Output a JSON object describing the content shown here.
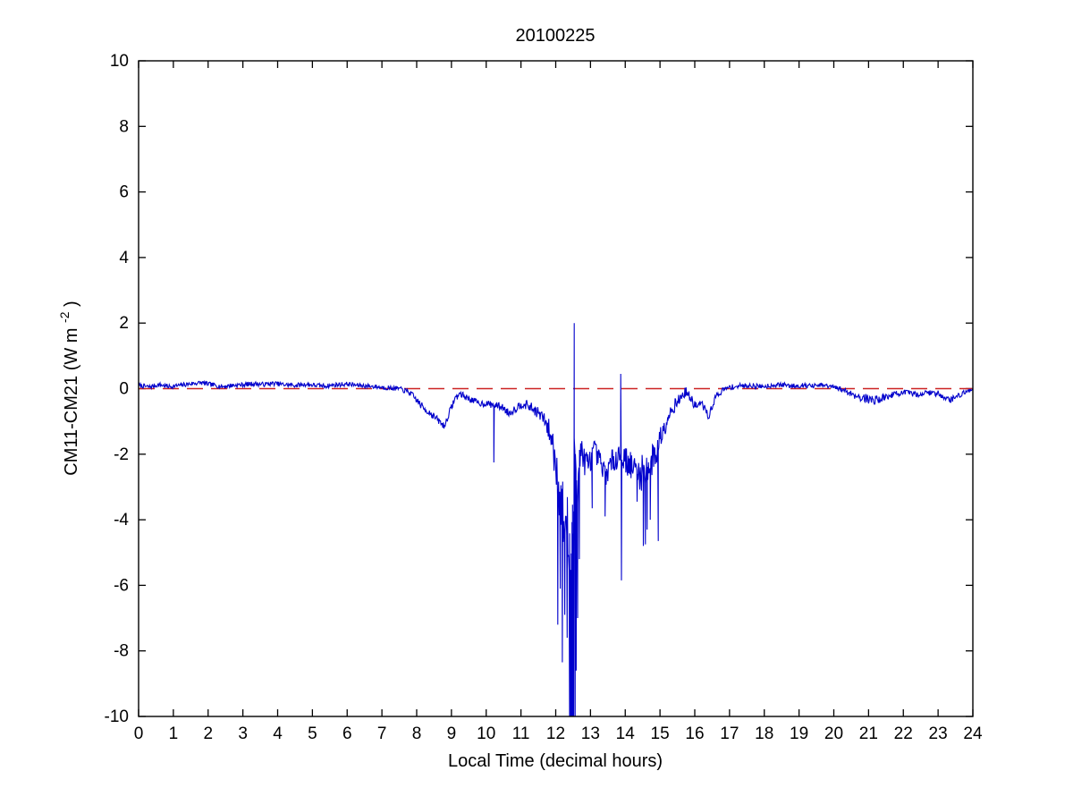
{
  "window": {
    "background": "#FFFFFF"
  },
  "chart_data": {
    "type": "line",
    "title": "20100225",
    "xlabel": "Local Time (decimal hours)",
    "ylabel": "CM11-CM21 (W m^-2)",
    "ylabel_parts": [
      "CM11-CM21 (W m",
      "-2",
      ")"
    ],
    "xlim": [
      0,
      24
    ],
    "ylim": [
      -10,
      10
    ],
    "xticks": [
      0,
      1,
      2,
      3,
      4,
      5,
      6,
      7,
      8,
      9,
      10,
      11,
      12,
      13,
      14,
      15,
      16,
      17,
      18,
      19,
      20,
      21,
      22,
      23,
      24
    ],
    "yticks": [
      -10,
      -8,
      -6,
      -4,
      -2,
      0,
      2,
      4,
      6,
      8,
      10
    ],
    "grid": false,
    "legend": null,
    "line_color": "#0000CC",
    "axis_color": "#000000",
    "zero_line": {
      "y": 0,
      "color": "#CC2222",
      "style": "dashed",
      "dash": [
        18,
        9
      ]
    },
    "sampling_hours": 0.016667,
    "noise_seed": 7,
    "series": [
      {
        "name": "CM11-CM21",
        "baseline_keypoints": [
          [
            0.0,
            0.1
          ],
          [
            0.3,
            0.05
          ],
          [
            0.6,
            0.12
          ],
          [
            0.9,
            0.06
          ],
          [
            1.2,
            0.1
          ],
          [
            1.5,
            0.15
          ],
          [
            1.8,
            0.18
          ],
          [
            2.1,
            0.12
          ],
          [
            2.4,
            0.06
          ],
          [
            2.7,
            0.1
          ],
          [
            3.0,
            0.12
          ],
          [
            3.3,
            0.15
          ],
          [
            3.6,
            0.13
          ],
          [
            3.9,
            0.16
          ],
          [
            4.2,
            0.12
          ],
          [
            4.5,
            0.1
          ],
          [
            4.8,
            0.13
          ],
          [
            5.1,
            0.1
          ],
          [
            5.4,
            0.08
          ],
          [
            5.7,
            0.12
          ],
          [
            6.0,
            0.14
          ],
          [
            6.3,
            0.1
          ],
          [
            6.6,
            0.08
          ],
          [
            6.9,
            0.05
          ],
          [
            7.2,
            0.02
          ],
          [
            7.5,
            0.0
          ],
          [
            7.8,
            -0.12
          ],
          [
            8.0,
            -0.35
          ],
          [
            8.2,
            -0.6
          ],
          [
            8.4,
            -0.75
          ],
          [
            8.6,
            -0.95
          ],
          [
            8.8,
            -1.15
          ],
          [
            8.95,
            -0.7
          ],
          [
            9.1,
            -0.3
          ],
          [
            9.25,
            -0.15
          ],
          [
            9.4,
            -0.25
          ],
          [
            9.6,
            -0.35
          ],
          [
            9.8,
            -0.45
          ],
          [
            10.0,
            -0.45
          ],
          [
            10.2,
            -0.5
          ],
          [
            10.45,
            -0.55
          ],
          [
            10.65,
            -0.75
          ],
          [
            10.85,
            -0.6
          ],
          [
            11.05,
            -0.45
          ],
          [
            11.25,
            -0.55
          ],
          [
            11.45,
            -0.7
          ],
          [
            11.65,
            -0.9
          ],
          [
            11.85,
            -1.4
          ],
          [
            12.0,
            -2.2
          ],
          [
            12.1,
            -3.2
          ],
          [
            12.2,
            -3.8
          ],
          [
            12.3,
            -4.2
          ],
          [
            12.4,
            -5.0
          ],
          [
            12.47,
            -5.4
          ],
          [
            12.55,
            -1.6
          ],
          [
            12.62,
            -2.8
          ],
          [
            12.72,
            -1.8
          ],
          [
            12.82,
            -2.2
          ],
          [
            12.95,
            -2.3
          ],
          [
            13.1,
            -1.9
          ],
          [
            13.25,
            -2.2
          ],
          [
            13.4,
            -2.6
          ],
          [
            13.55,
            -2.4
          ],
          [
            13.7,
            -2.1
          ],
          [
            13.85,
            -2.0
          ],
          [
            14.0,
            -2.15
          ],
          [
            14.15,
            -2.35
          ],
          [
            14.3,
            -2.5
          ],
          [
            14.45,
            -2.6
          ],
          [
            14.6,
            -2.45
          ],
          [
            14.75,
            -2.25
          ],
          [
            14.9,
            -1.9
          ],
          [
            15.05,
            -1.35
          ],
          [
            15.2,
            -0.9
          ],
          [
            15.35,
            -0.6
          ],
          [
            15.5,
            -0.4
          ],
          [
            15.75,
            -0.08
          ],
          [
            15.9,
            -0.35
          ],
          [
            16.05,
            -0.55
          ],
          [
            16.2,
            -0.45
          ],
          [
            16.4,
            -0.85
          ],
          [
            16.6,
            -0.25
          ],
          [
            16.8,
            -0.05
          ],
          [
            17.0,
            0.04
          ],
          [
            17.3,
            0.08
          ],
          [
            17.6,
            0.1
          ],
          [
            17.9,
            0.06
          ],
          [
            18.2,
            0.1
          ],
          [
            18.5,
            0.12
          ],
          [
            18.8,
            0.08
          ],
          [
            19.1,
            0.1
          ],
          [
            19.4,
            0.08
          ],
          [
            19.7,
            0.1
          ],
          [
            20.0,
            0.04
          ],
          [
            20.3,
            -0.05
          ],
          [
            20.6,
            -0.2
          ],
          [
            20.9,
            -0.3
          ],
          [
            21.2,
            -0.35
          ],
          [
            21.5,
            -0.25
          ],
          [
            21.8,
            -0.15
          ],
          [
            22.1,
            -0.12
          ],
          [
            22.4,
            -0.18
          ],
          [
            22.7,
            -0.12
          ],
          [
            23.0,
            -0.15
          ],
          [
            23.35,
            -0.35
          ],
          [
            23.6,
            -0.2
          ],
          [
            23.85,
            -0.08
          ],
          [
            24.0,
            0.0
          ]
        ],
        "noise_amplitude_keypoints": [
          [
            0.0,
            0.07
          ],
          [
            7.5,
            0.07
          ],
          [
            8.2,
            0.12
          ],
          [
            9.0,
            0.1
          ],
          [
            10.0,
            0.1
          ],
          [
            11.0,
            0.13
          ],
          [
            11.7,
            0.2
          ],
          [
            12.0,
            0.7
          ],
          [
            12.2,
            1.1
          ],
          [
            12.45,
            1.6
          ],
          [
            12.6,
            1.1
          ],
          [
            12.75,
            0.5
          ],
          [
            13.0,
            0.35
          ],
          [
            13.5,
            0.4
          ],
          [
            14.0,
            0.4
          ],
          [
            14.5,
            0.55
          ],
          [
            14.9,
            0.5
          ],
          [
            15.2,
            0.3
          ],
          [
            15.6,
            0.15
          ],
          [
            16.0,
            0.15
          ],
          [
            16.6,
            0.1
          ],
          [
            17.0,
            0.08
          ],
          [
            20.0,
            0.07
          ],
          [
            21.0,
            0.15
          ],
          [
            22.0,
            0.08
          ],
          [
            23.4,
            0.1
          ],
          [
            24.0,
            0.06
          ]
        ],
        "spikes": [
          [
            10.22,
            -2.25
          ],
          [
            12.06,
            -7.2
          ],
          [
            12.13,
            -6.1
          ],
          [
            12.19,
            -8.35
          ],
          [
            12.26,
            -6.9
          ],
          [
            12.33,
            -7.6
          ],
          [
            12.4,
            -10.6
          ],
          [
            12.413,
            -10.6
          ],
          [
            12.426,
            -10.6
          ],
          [
            12.439,
            -10.6
          ],
          [
            12.452,
            -10.6
          ],
          [
            12.465,
            -10.6
          ],
          [
            12.478,
            -10.6
          ],
          [
            12.491,
            -10.6
          ],
          [
            12.504,
            -10.6
          ],
          [
            12.517,
            -10.6
          ],
          [
            12.532,
            2.0
          ],
          [
            12.558,
            -10.6
          ],
          [
            12.59,
            -8.6
          ],
          [
            12.63,
            -7.0
          ],
          [
            12.68,
            -5.2
          ],
          [
            13.05,
            -3.65
          ],
          [
            13.42,
            -3.9
          ],
          [
            13.87,
            0.45
          ],
          [
            13.89,
            -5.85
          ],
          [
            14.34,
            -3.45
          ],
          [
            14.52,
            -4.8
          ],
          [
            14.58,
            -4.75
          ],
          [
            14.63,
            -4.3
          ],
          [
            14.72,
            -4.0
          ],
          [
            14.95,
            -4.65
          ]
        ]
      }
    ]
  }
}
